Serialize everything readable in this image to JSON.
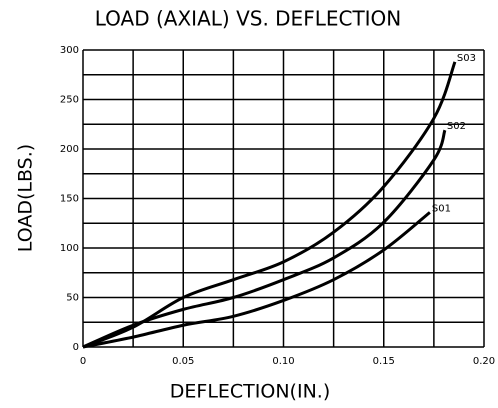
{
  "chart_data": {
    "type": "line",
    "title": "LOAD (AXIAL) VS. DEFLECTION",
    "x_label": "DEFLECTION(IN.)",
    "y_label": "LOAD(LBS.)",
    "xlim": [
      0,
      0.2
    ],
    "ylim": [
      0,
      300
    ],
    "xticks": [
      0,
      {
        "value": 0.05,
        "label": "0.05"
      },
      {
        "value": 0.1,
        "label": "0.10"
      },
      {
        "value": 0.15,
        "label": "0.15"
      },
      {
        "value": 0.2,
        "label": "0.20"
      }
    ],
    "yticks": [
      0,
      50,
      100,
      150,
      200,
      250,
      300
    ],
    "minor_xticks": [
      0.025,
      0.075,
      0.125,
      0.175
    ],
    "minor_yticks": [
      25,
      75,
      125,
      175,
      225,
      275
    ],
    "grid": true,
    "series": [
      {
        "name": "S03",
        "color": "#000000",
        "x": [
          0,
          0.025,
          0.05,
          0.075,
          0.1,
          0.125,
          0.15,
          0.175,
          0.1855
        ],
        "values": [
          0,
          20,
          50,
          68,
          86,
          116,
          162,
          231,
          288
        ]
      },
      {
        "name": "S02",
        "color": "#000000",
        "x": [
          0,
          0.025,
          0.05,
          0.075,
          0.1,
          0.125,
          0.15,
          0.175,
          0.1805
        ],
        "values": [
          0,
          22,
          38,
          50,
          68,
          90,
          126,
          189,
          219
        ]
      },
      {
        "name": "S01",
        "color": "#000000",
        "x": [
          0,
          0.025,
          0.05,
          0.075,
          0.1,
          0.125,
          0.15,
          0.173
        ],
        "values": [
          0,
          10,
          22,
          31,
          47,
          68,
          98,
          136
        ]
      }
    ]
  }
}
